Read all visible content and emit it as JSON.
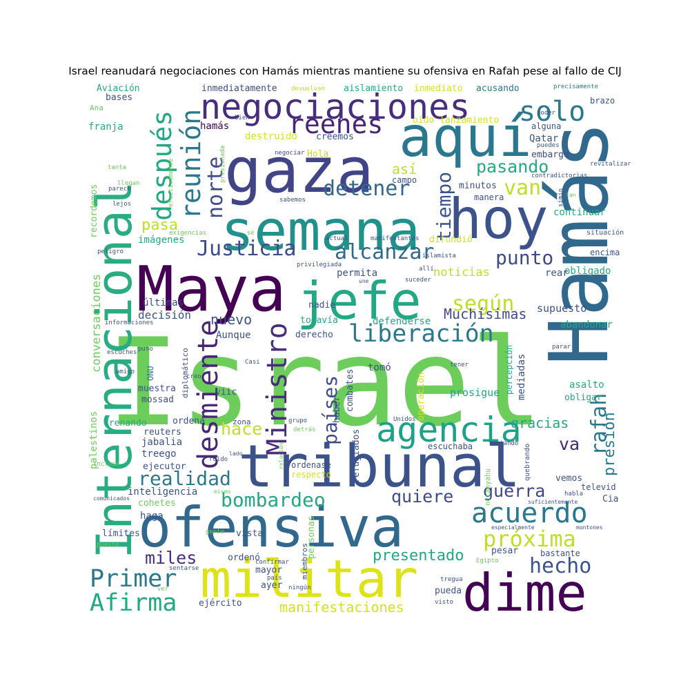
{
  "title": "Israel reanudará negociaciones con Hamás mientras mantiene su ofensiva en Rafah pese al fallo de CIJ",
  "palette": [
    "#440154",
    "#482677",
    "#3b528b",
    "#2c728e",
    "#21918c",
    "#28ae80",
    "#5ec962",
    "#addc30",
    "#fde725"
  ],
  "words": [
    {
      "text": "Israel",
      "color": "#6ccd5a"
    },
    {
      "text": "Hamás",
      "color": "#31688e"
    },
    {
      "text": "Internacional",
      "color": "#27ad81"
    },
    {
      "text": "Maya",
      "color": "#440154"
    },
    {
      "text": "gaza",
      "color": "#414487"
    },
    {
      "text": "aquí",
      "color": "#2a788e"
    },
    {
      "text": "semana",
      "color": "#21918c"
    },
    {
      "text": "hoy",
      "color": "#3b528b"
    },
    {
      "text": "negociaciones",
      "color": "#472d7b"
    },
    {
      "text": "tribunal",
      "color": "#3b528b"
    },
    {
      "text": "ofensiva",
      "color": "#31688e"
    },
    {
      "text": "militar",
      "color": "#dde318"
    },
    {
      "text": "dime",
      "color": "#440154"
    },
    {
      "text": "jefe",
      "color": "#22a884"
    },
    {
      "text": "Ministro",
      "color": "#472d7b"
    },
    {
      "text": "desmiente",
      "color": "#482677"
    },
    {
      "text": "agencia",
      "color": "#1fa187"
    },
    {
      "text": "Justicia",
      "color": "#3e4a89"
    },
    {
      "text": "alcanzar",
      "color": "#31688e"
    },
    {
      "text": "liberación",
      "color": "#2a788e"
    },
    {
      "text": "después",
      "color": "#22a884"
    },
    {
      "text": "reunión",
      "color": "#2a788e"
    },
    {
      "text": "norte",
      "color": "#3e4a89"
    },
    {
      "text": "reenes",
      "color": "#482677"
    },
    {
      "text": "solo",
      "color": "#2a788e"
    },
    {
      "text": "detener",
      "color": "#31688e"
    },
    {
      "text": "van",
      "color": "#bddf26"
    },
    {
      "text": "pasando",
      "color": "#22a884"
    },
    {
      "text": "tiempo",
      "color": "#3b528b"
    },
    {
      "text": "punto",
      "color": "#3e4a89"
    },
    {
      "text": "según",
      "color": "#bddf26"
    },
    {
      "text": "pasa",
      "color": "#bddf26"
    },
    {
      "text": "así",
      "color": "#bddf26"
    },
    {
      "text": "rafah",
      "color": "#2a788e"
    },
    {
      "text": "presión",
      "color": "#2a788e"
    },
    {
      "text": "países",
      "color": "#3e4a89"
    },
    {
      "text": "hace",
      "color": "#bddf26"
    },
    {
      "text": "realidad",
      "color": "#2a788e"
    },
    {
      "text": "bombardeo",
      "color": "#22a884"
    },
    {
      "text": "quiere",
      "color": "#3e4a89"
    },
    {
      "text": "acuerdo",
      "color": "#2a788e"
    },
    {
      "text": "próxima",
      "color": "#bddf26"
    },
    {
      "text": "hecho",
      "color": "#3b528b"
    },
    {
      "text": "guerra",
      "color": "#414487"
    },
    {
      "text": "va",
      "color": "#482677"
    },
    {
      "text": "Primer",
      "color": "#2a788e"
    },
    {
      "text": "Afirma",
      "color": "#22a884"
    },
    {
      "text": "miles",
      "color": "#472d7b"
    },
    {
      "text": "presentado",
      "color": "#22a884"
    },
    {
      "text": "manifestaciones",
      "color": "#d2e21b"
    },
    {
      "text": "Muchísimas",
      "color": "#3e4a89"
    },
    {
      "text": "nuevo",
      "color": "#3b528b"
    },
    {
      "text": "gracias",
      "color": "#22a884"
    },
    {
      "text": "noticias",
      "color": "#bddf26"
    },
    {
      "text": "conversaciones",
      "color": "#6ccd5a"
    },
    {
      "text": "palestinos",
      "color": "#6ccd5a"
    },
    {
      "text": "recordemos",
      "color": "#6ccd5a"
    },
    {
      "text": "imágenes",
      "color": "#22a884"
    },
    {
      "text": "últimas",
      "color": "#3e4a89"
    },
    {
      "text": "decisión",
      "color": "#3b528b"
    },
    {
      "text": "supuesto",
      "color": "#3b528b"
    },
    {
      "text": "defenderse",
      "color": "#22a884"
    },
    {
      "text": "abandonar",
      "color": "#22a884"
    },
    {
      "text": "obligado",
      "color": "#22a884"
    },
    {
      "text": "encima",
      "color": "#3b528b"
    },
    {
      "text": "situación",
      "color": "#3b528b"
    },
    {
      "text": "continuar",
      "color": "#22a884"
    },
    {
      "text": "minutos",
      "color": "#3b528b"
    },
    {
      "text": "manera",
      "color": "#3b528b"
    },
    {
      "text": "Qatar",
      "color": "#3b528b"
    },
    {
      "text": "embargo",
      "color": "#3e4a89"
    },
    {
      "text": "alguna",
      "color": "#3b528b"
    },
    {
      "text": "brazo",
      "color": "#3b528b"
    },
    {
      "text": "oído lanzamiento",
      "color": "#d2e21b"
    },
    {
      "text": "destruido",
      "color": "#d2e21b"
    },
    {
      "text": "hamás",
      "color": "#440154"
    },
    {
      "text": "creemos",
      "color": "#3b528b"
    },
    {
      "text": "campo",
      "color": "#3b528b"
    },
    {
      "text": "Hola",
      "color": "#bddf26"
    },
    {
      "text": "negociar",
      "color": "#3e4a89"
    },
    {
      "text": "inmediatamente",
      "color": "#3e4a89"
    },
    {
      "text": "aislamiento",
      "color": "#22a884"
    },
    {
      "text": "inmediato",
      "color": "#d2e21b"
    },
    {
      "text": "acusando",
      "color": "#2a788e"
    },
    {
      "text": "devuelvan",
      "color": "#bddf26"
    },
    {
      "text": "precisamente",
      "color": "#2a788e"
    },
    {
      "text": "Aviación",
      "color": "#22a884"
    },
    {
      "text": "bases",
      "color": "#3b528b"
    },
    {
      "text": "Ana",
      "color": "#6ccd5a"
    },
    {
      "text": "franja",
      "color": "#22a884"
    },
    {
      "text": "difundió",
      "color": "#d2e21b"
    },
    {
      "text": "permita",
      "color": "#3b528b"
    },
    {
      "text": "rear",
      "color": "#3b528b"
    },
    {
      "text": "nadie",
      "color": "#3b528b"
    },
    {
      "text": "todavía",
      "color": "#22a884"
    },
    {
      "text": "derecho",
      "color": "#3b528b"
    },
    {
      "text": "Aunque",
      "color": "#3b528b"
    },
    {
      "text": "tomó",
      "color": "#3b528b"
    },
    {
      "text": "combates",
      "color": "#3b528b"
    },
    {
      "text": "haber",
      "color": "#3b528b"
    },
    {
      "text": "refugiados",
      "color": "#3b528b"
    },
    {
      "text": "operación",
      "color": "#d2e21b"
    },
    {
      "text": "prosigue",
      "color": "#22a884"
    },
    {
      "text": "percepción",
      "color": "#22a884"
    },
    {
      "text": "mediadas",
      "color": "#3b528b"
    },
    {
      "text": "asalto",
      "color": "#22a884"
    },
    {
      "text": "obligar",
      "color": "#22a884"
    },
    {
      "text": "mossad",
      "color": "#3b528b"
    },
    {
      "text": "viic",
      "color": "#3b528b"
    },
    {
      "text": "muestra",
      "color": "#3b528b"
    },
    {
      "text": "diplomático",
      "color": "#3b528b"
    },
    {
      "text": "ONU",
      "color": "#2a788e"
    },
    {
      "text": "frenando",
      "color": "#22a884"
    },
    {
      "text": "ordena",
      "color": "#3b528b"
    },
    {
      "text": "zona",
      "color": "#3b528b"
    },
    {
      "text": "reuters",
      "color": "#3b528b"
    },
    {
      "text": "jabalia",
      "color": "#3b528b"
    },
    {
      "text": "treego",
      "color": "#3b528b"
    },
    {
      "text": "escuchaba",
      "color": "#3b528b"
    },
    {
      "text": "ejecutor",
      "color": "#3b528b"
    },
    {
      "text": "ordenase",
      "color": "#3b528b"
    },
    {
      "text": "respecto",
      "color": "#d2e21b"
    },
    {
      "text": "inteligencia",
      "color": "#3b528b"
    },
    {
      "text": "cohetes",
      "color": "#6ccd5a"
    },
    {
      "text": "haga",
      "color": "#3b528b"
    },
    {
      "text": "límites",
      "color": "#3b528b"
    },
    {
      "text": "vista",
      "color": "#3b528b"
    },
    {
      "text": "personas",
      "color": "#6ccd5a"
    },
    {
      "text": "ordenó",
      "color": "#3b528b"
    },
    {
      "text": "mayor",
      "color": "#3b528b"
    },
    {
      "text": "ayer",
      "color": "#3b528b"
    },
    {
      "text": "miembros",
      "color": "#3b528b"
    },
    {
      "text": "pesar",
      "color": "#3b528b"
    },
    {
      "text": "bastante",
      "color": "#3b528b"
    },
    {
      "text": "pueda",
      "color": "#3b528b"
    },
    {
      "text": "ejército",
      "color": "#3b528b"
    },
    {
      "text": "vemos",
      "color": "#3b528b"
    },
    {
      "text": "Cia",
      "color": "#3b528b"
    },
    {
      "text": "televid",
      "color": "#3b528b"
    },
    {
      "text": "netanyahu",
      "color": "#6ccd5a"
    },
    {
      "text": "quebrando",
      "color": "#3b528b"
    },
    {
      "text": "tratando",
      "color": "#3b528b"
    },
    {
      "text": "Unidos",
      "color": "#3b528b"
    },
    {
      "text": "detrás",
      "color": "#6ccd5a"
    },
    {
      "text": "grupo",
      "color": "#3b528b"
    },
    {
      "text": "ruido",
      "color": "#3b528b"
    },
    {
      "text": "lado",
      "color": "#3b528b"
    },
    {
      "text": "relación",
      "color": "#6ccd5a"
    },
    {
      "text": "Casi",
      "color": "#3b528b"
    },
    {
      "text": "tener",
      "color": "#3b528b"
    },
    {
      "text": "parar",
      "color": "#3b528b"
    },
    {
      "text": "creo",
      "color": "#3b528b"
    },
    {
      "text": "amigo",
      "color": "#3b528b"
    },
    {
      "text": "escuches",
      "color": "#3b528b"
    },
    {
      "text": "puso",
      "color": "#3b528b"
    },
    {
      "text": "creí",
      "color": "#6ccd5a"
    },
    {
      "text": "informaciones",
      "color": "#3b528b"
    },
    {
      "text": "peligro",
      "color": "#3b528b"
    },
    {
      "text": "lejos",
      "color": "#3b528b"
    },
    {
      "text": "parece",
      "color": "#3b528b"
    },
    {
      "text": "llegan",
      "color": "#6ccd5a"
    },
    {
      "text": "tanta",
      "color": "#6ccd5a"
    },
    {
      "text": "efectivamente",
      "color": "#6ccd5a"
    },
    {
      "text": "presionada",
      "color": "#6ccd5a"
    },
    {
      "text": "bien",
      "color": "#3b528b"
    },
    {
      "text": "poder",
      "color": "#3b528b"
    },
    {
      "text": "puedes",
      "color": "#3b528b"
    },
    {
      "text": "revitalizar",
      "color": "#3b528b"
    },
    {
      "text": "contradictorias",
      "color": "#3b528b"
    },
    {
      "text": "simin",
      "color": "#3b528b"
    },
    {
      "text": "sé",
      "color": "#6ccd5a"
    },
    {
      "text": "actual",
      "color": "#3b528b"
    },
    {
      "text": "manifestantes",
      "color": "#3b528b"
    },
    {
      "text": "exigencias",
      "color": "#6ccd5a"
    },
    {
      "text": "sabemos",
      "color": "#3b528b"
    },
    {
      "text": "privilegiada",
      "color": "#3b528b"
    },
    {
      "text": "islamista",
      "color": "#3b528b"
    },
    {
      "text": "allí",
      "color": "#3b528b"
    },
    {
      "text": "une",
      "color": "#3b528b"
    },
    {
      "text": "suceder",
      "color": "#3b528b"
    },
    {
      "text": "incluso",
      "color": "#6ccd5a"
    },
    {
      "text": "comunicados",
      "color": "#3b528b"
    },
    {
      "text": "puesto",
      "color": "#6ccd5a"
    },
    {
      "text": "sentarse",
      "color": "#3b528b"
    },
    {
      "text": "ver",
      "color": "#6ccd5a"
    },
    {
      "text": "país",
      "color": "#3b528b"
    },
    {
      "text": "confirmar",
      "color": "#3b528b"
    },
    {
      "text": "ningún",
      "color": "#3b528b"
    },
    {
      "text": "visto",
      "color": "#3b528b"
    },
    {
      "text": "tregua",
      "color": "#3b528b"
    },
    {
      "text": "Egipto",
      "color": "#6ccd5a"
    },
    {
      "text": "suficientemente",
      "color": "#3b528b"
    },
    {
      "text": "especialmente",
      "color": "#3b528b"
    },
    {
      "text": "montones",
      "color": "#3b528b"
    },
    {
      "text": "habla",
      "color": "#3b528b"
    },
    {
      "text": "gente",
      "color": "#6ccd5a"
    },
    {
      "text": "mismo",
      "color": "#6ccd5a"
    },
    {
      "text": "tan",
      "color": "#6ccd5a"
    }
  ]
}
